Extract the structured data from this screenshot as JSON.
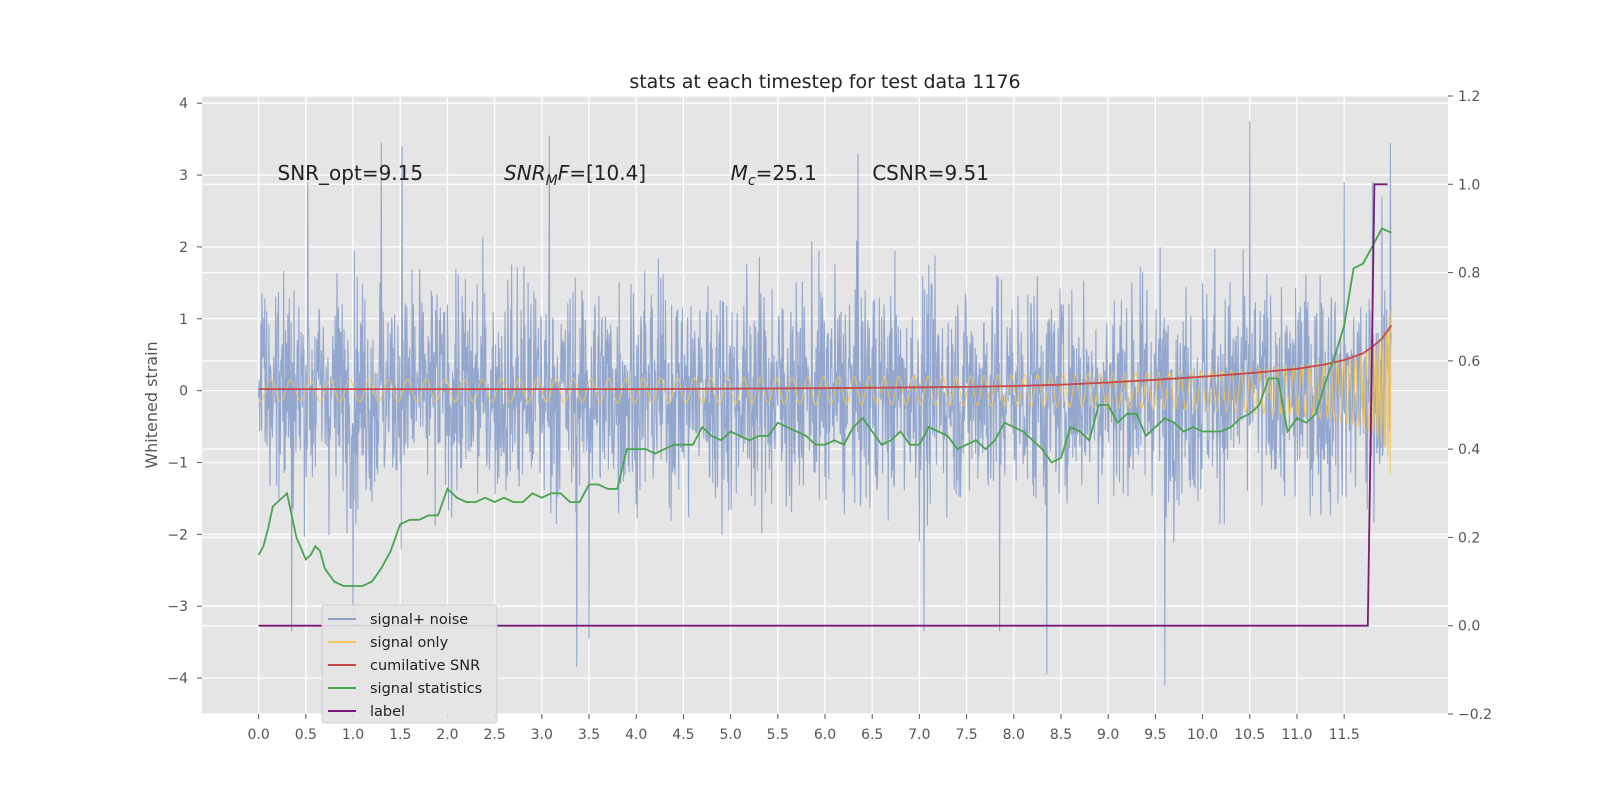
{
  "chart_data": {
    "type": "line",
    "title": "stats at each timestep for test data 1176",
    "ylabel": "Whitened strain",
    "xlabel": "",
    "xlim": [
      -0.6,
      12.6
    ],
    "ylim": [
      -4.5,
      4.1
    ],
    "y2lim": [
      -0.2,
      1.2
    ],
    "x_ticks": [
      0.0,
      0.5,
      1.0,
      1.5,
      2.0,
      2.5,
      3.0,
      3.5,
      4.0,
      4.5,
      5.0,
      5.5,
      6.0,
      6.5,
      7.0,
      7.5,
      8.0,
      8.5,
      9.0,
      9.5,
      10.0,
      10.5,
      11.0,
      11.5
    ],
    "x_tick_labels": [
      "0.0",
      "0.5",
      "1.0",
      "1.5",
      "2.0",
      "2.5",
      "3.0",
      "3.5",
      "4.0",
      "4.5",
      "5.0",
      "5.5",
      "6.0",
      "6.5",
      "7.0",
      "7.5",
      "8.0",
      "8.5",
      "9.0",
      "9.5",
      "10.0",
      "10.5",
      "11.0",
      "11.5"
    ],
    "y_ticks": [
      4,
      3,
      2,
      1,
      0,
      -1,
      -2,
      -3,
      -4
    ],
    "y_tick_labels": [
      "4",
      "3",
      "2",
      "1",
      "0",
      "−1",
      "−2",
      "−3",
      "−4"
    ],
    "y2_ticks": [
      1.2,
      1.0,
      0.8,
      0.6,
      0.4,
      0.2,
      0.0,
      -0.2
    ],
    "y2_tick_labels": [
      "1.2",
      "1.0",
      "0.8",
      "0.6",
      "0.4",
      "0.2",
      "0.0",
      "−0.2"
    ],
    "grid": true,
    "legend_position": "lower-left",
    "annotations": [
      {
        "x": 0.2,
        "y": 2.9,
        "text": "SNR_opt=9.15"
      },
      {
        "x": 2.6,
        "y": 2.9,
        "text": "SNR_MF=[10.4]"
      },
      {
        "x": 5.0,
        "y": 2.9,
        "text": "M_c=25.1"
      },
      {
        "x": 6.5,
        "y": 2.9,
        "text": "CSNR=9.51"
      }
    ],
    "series": [
      {
        "name": "signal+ noise",
        "color": "#8ea3cc",
        "axis": "left",
        "x_range": [
          0.0,
          12.0
        ],
        "amplitude_std": 1.0,
        "spikes": [
          [
            0.35,
            -3.35
          ],
          [
            0.52,
            2.9
          ],
          [
            1.3,
            3.45
          ],
          [
            1.52,
            3.4
          ],
          [
            1.0,
            -3.3
          ],
          [
            3.08,
            3.55
          ],
          [
            3.37,
            -3.85
          ],
          [
            3.5,
            -3.45
          ],
          [
            5.97,
            1.3
          ],
          [
            6.35,
            3.3
          ],
          [
            6.0,
            -1.2
          ],
          [
            7.05,
            -3.35
          ],
          [
            7.85,
            -3.35
          ],
          [
            8.35,
            -3.95
          ],
          [
            9.6,
            -4.1
          ],
          [
            10.5,
            3.75
          ],
          [
            11.5,
            2.9
          ],
          [
            11.8,
            2.9
          ],
          [
            11.9,
            2.7
          ],
          [
            11.99,
            3.45
          ]
        ]
      },
      {
        "name": "signal only",
        "color": "#f2c45a",
        "axis": "left",
        "x_range": [
          0.0,
          12.0
        ],
        "envelope_end": 1.4
      },
      {
        "name": "cumilative SNR",
        "color": "#c9494a",
        "axis": "right",
        "x": [
          0.0,
          1.0,
          2.0,
          3.0,
          4.0,
          5.0,
          6.0,
          7.0,
          7.5,
          8.0,
          8.5,
          9.0,
          9.5,
          10.0,
          10.5,
          11.0,
          11.3,
          11.5,
          11.7,
          11.8,
          11.9,
          12.0
        ],
        "y": [
          0.536,
          0.536,
          0.536,
          0.536,
          0.536,
          0.537,
          0.538,
          0.54,
          0.541,
          0.543,
          0.546,
          0.551,
          0.557,
          0.564,
          0.572,
          0.582,
          0.592,
          0.602,
          0.617,
          0.632,
          0.65,
          0.68
        ]
      },
      {
        "name": "signal statistics",
        "color": "#4aa34f",
        "axis": "right",
        "x": [
          0.0,
          0.05,
          0.1,
          0.15,
          0.2,
          0.3,
          0.4,
          0.5,
          0.55,
          0.6,
          0.65,
          0.7,
          0.8,
          0.9,
          1.0,
          1.1,
          1.2,
          1.3,
          1.4,
          1.5,
          1.6,
          1.7,
          1.8,
          1.9,
          2.0,
          2.1,
          2.2,
          2.3,
          2.4,
          2.5,
          2.6,
          2.7,
          2.8,
          2.9,
          3.0,
          3.1,
          3.2,
          3.3,
          3.4,
          3.5,
          3.6,
          3.7,
          3.8,
          3.9,
          4.0,
          4.1,
          4.2,
          4.3,
          4.4,
          4.5,
          4.6,
          4.7,
          4.8,
          4.9,
          5.0,
          5.1,
          5.2,
          5.3,
          5.4,
          5.5,
          5.6,
          5.7,
          5.8,
          5.9,
          6.0,
          6.1,
          6.2,
          6.3,
          6.4,
          6.5,
          6.6,
          6.7,
          6.8,
          6.9,
          7.0,
          7.1,
          7.2,
          7.3,
          7.4,
          7.5,
          7.6,
          7.7,
          7.8,
          7.9,
          8.0,
          8.1,
          8.2,
          8.3,
          8.4,
          8.5,
          8.6,
          8.7,
          8.8,
          8.9,
          9.0,
          9.1,
          9.2,
          9.3,
          9.4,
          9.5,
          9.6,
          9.7,
          9.8,
          9.9,
          10.0,
          10.1,
          10.2,
          10.3,
          10.4,
          10.5,
          10.6,
          10.7,
          10.8,
          10.9,
          11.0,
          11.1,
          11.2,
          11.3,
          11.4,
          11.5,
          11.6,
          11.7,
          11.8,
          11.9,
          12.0
        ],
        "y": [
          0.16,
          0.18,
          0.22,
          0.27,
          0.28,
          0.3,
          0.2,
          0.15,
          0.16,
          0.18,
          0.17,
          0.13,
          0.1,
          0.09,
          0.09,
          0.09,
          0.1,
          0.13,
          0.17,
          0.23,
          0.24,
          0.24,
          0.25,
          0.25,
          0.31,
          0.29,
          0.28,
          0.28,
          0.29,
          0.28,
          0.29,
          0.28,
          0.28,
          0.3,
          0.29,
          0.3,
          0.3,
          0.28,
          0.28,
          0.32,
          0.32,
          0.31,
          0.31,
          0.4,
          0.4,
          0.4,
          0.39,
          0.4,
          0.41,
          0.41,
          0.41,
          0.45,
          0.43,
          0.42,
          0.44,
          0.43,
          0.42,
          0.43,
          0.43,
          0.46,
          0.45,
          0.44,
          0.43,
          0.41,
          0.41,
          0.42,
          0.41,
          0.45,
          0.47,
          0.44,
          0.41,
          0.42,
          0.44,
          0.41,
          0.41,
          0.45,
          0.44,
          0.43,
          0.4,
          0.41,
          0.42,
          0.4,
          0.42,
          0.46,
          0.45,
          0.44,
          0.42,
          0.4,
          0.37,
          0.38,
          0.45,
          0.44,
          0.42,
          0.5,
          0.5,
          0.46,
          0.48,
          0.48,
          0.43,
          0.45,
          0.47,
          0.46,
          0.44,
          0.45,
          0.44,
          0.44,
          0.44,
          0.45,
          0.47,
          0.48,
          0.5,
          0.56,
          0.56,
          0.44,
          0.47,
          0.46,
          0.48,
          0.55,
          0.61,
          0.68,
          0.81,
          0.82,
          0.86,
          0.9,
          0.89
        ]
      },
      {
        "name": "label",
        "color": "#7b1a7b",
        "axis": "right",
        "x": [
          0.0,
          11.75,
          11.82,
          11.96
        ],
        "y": [
          0.0,
          0.0,
          1.0,
          1.0
        ]
      }
    ]
  }
}
